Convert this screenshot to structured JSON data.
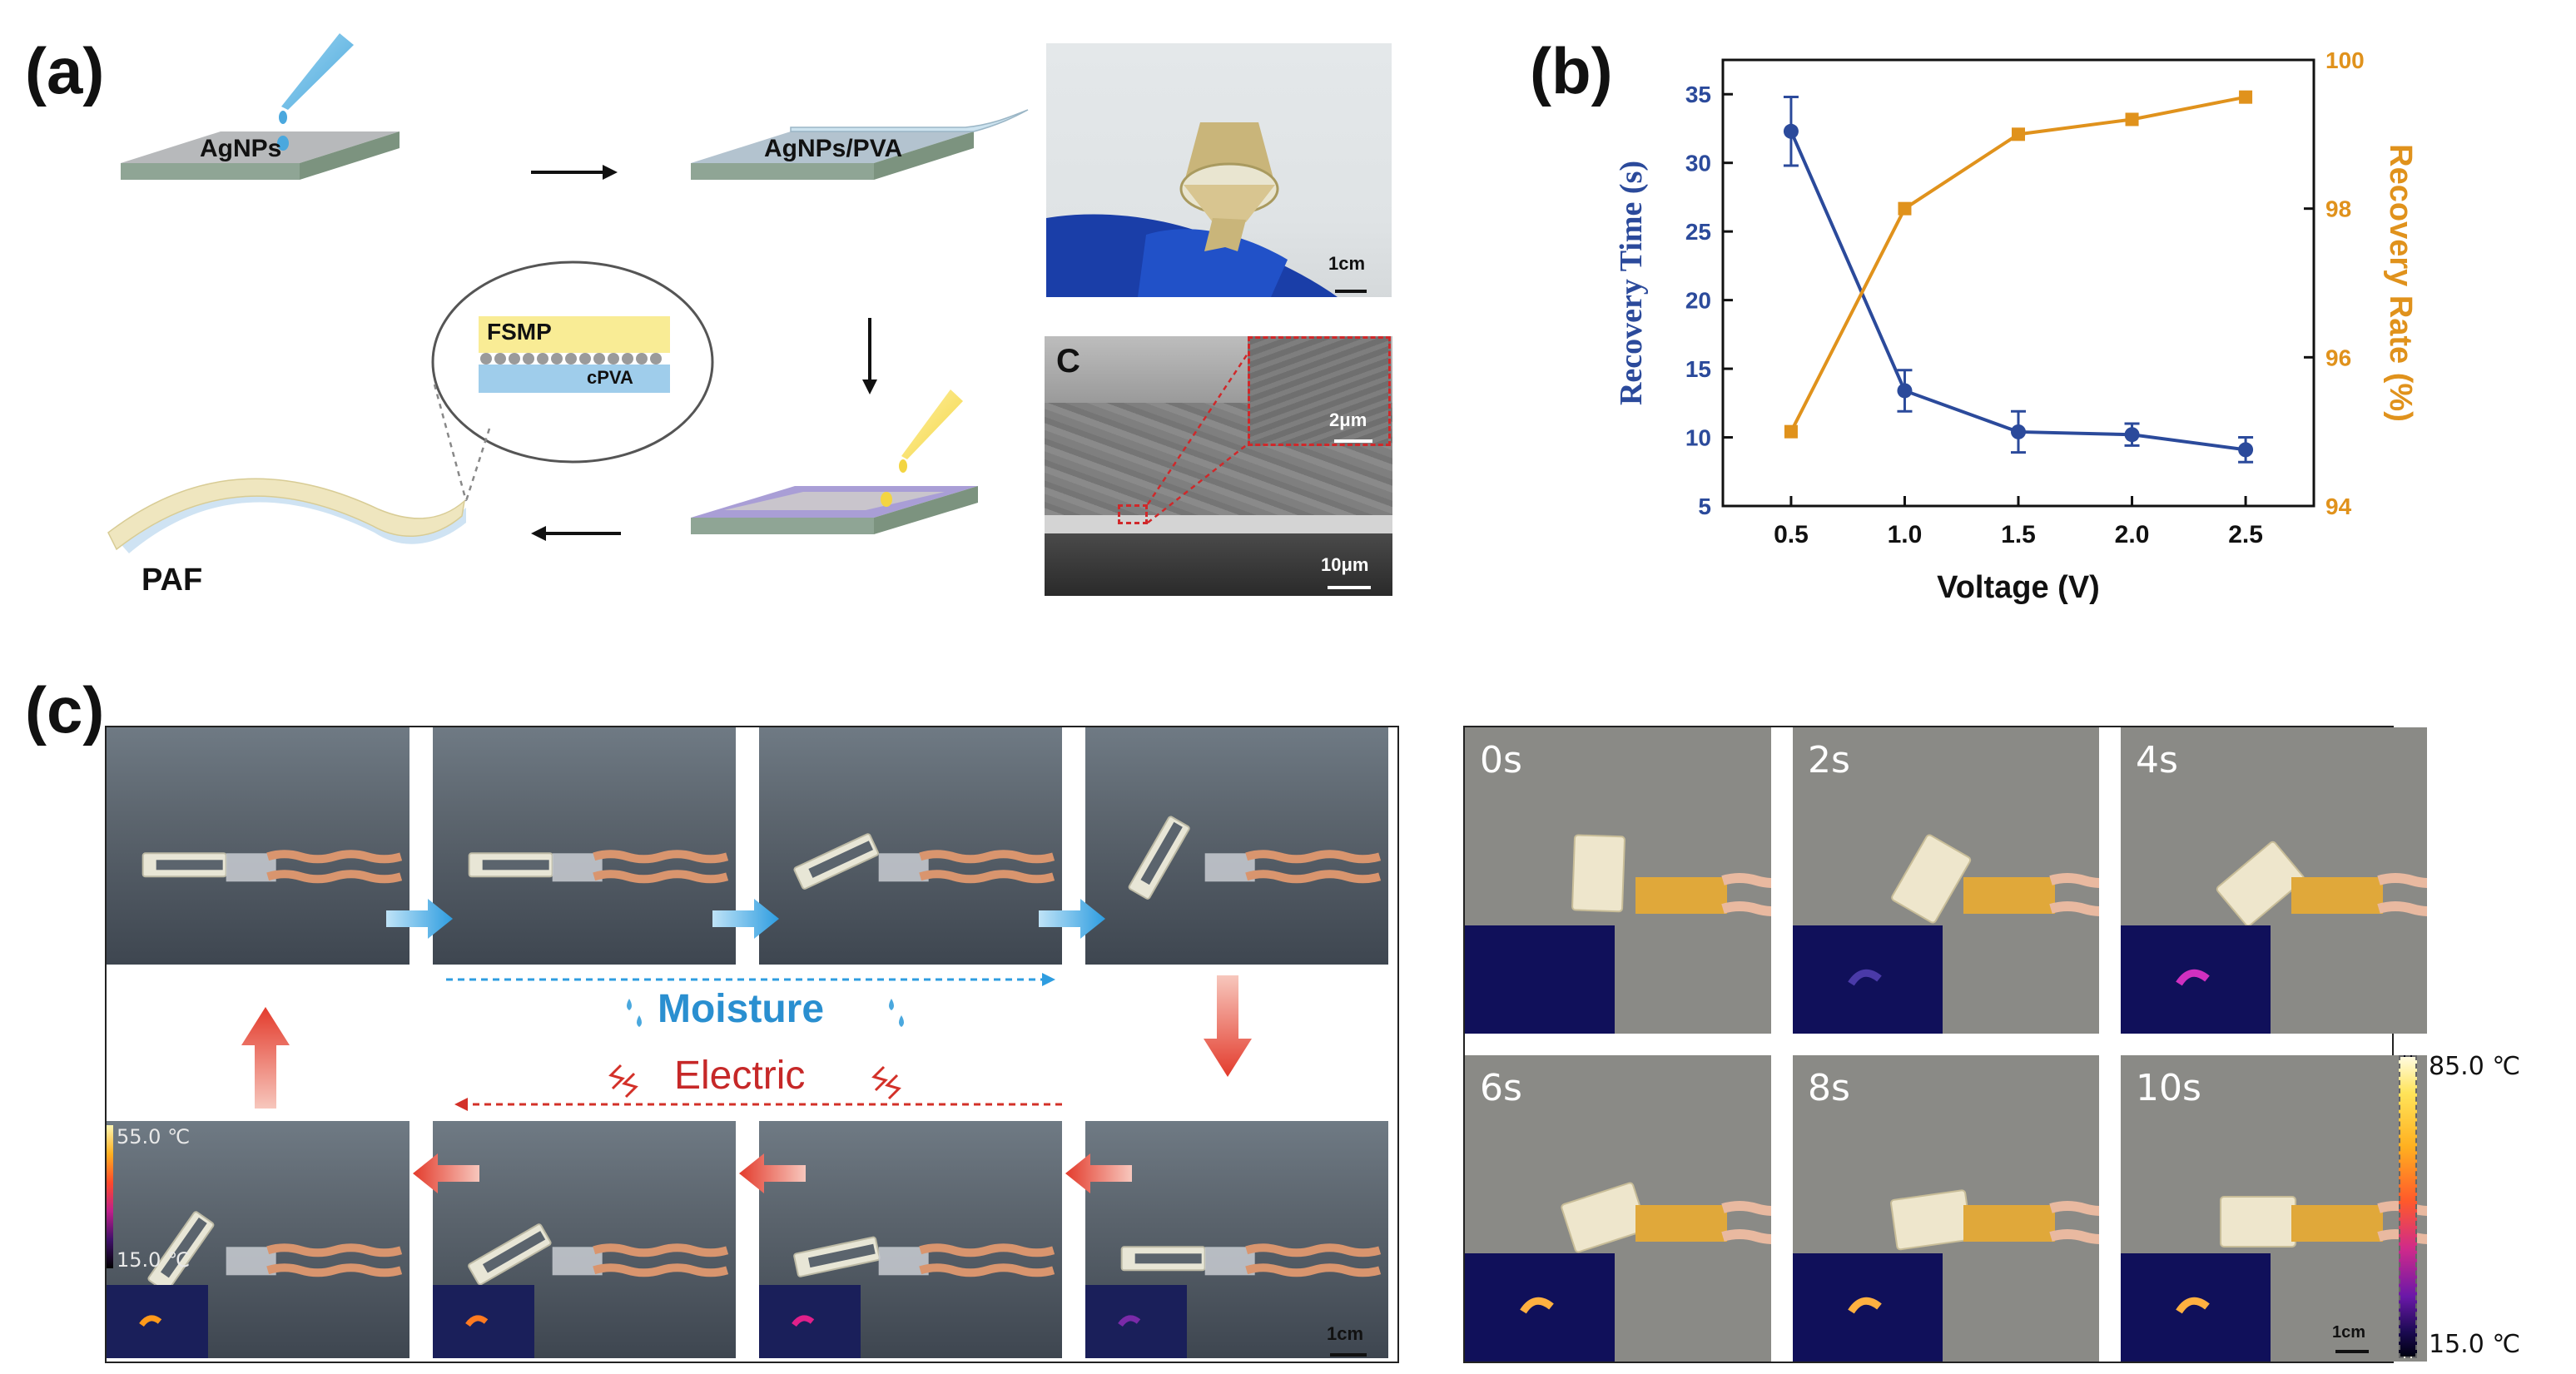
{
  "figure": {
    "panel_a": {
      "letter": "(a)",
      "step1_label": "AgNPs",
      "step2_label": "AgNPs/PVA",
      "layer_top": "FSMP",
      "layer_bottom": "cPVA",
      "film_label": "PAF",
      "photo_scale": "1cm",
      "sem_corner": "C",
      "sem_inset_scale": "2μm",
      "sem_scale": "10μm"
    },
    "panel_b": {
      "letter": "(b)"
    },
    "panel_c": {
      "letter": "(c)",
      "moisture_label": "Moisture",
      "electric_label": "Electric",
      "thermal_max": "55.0 ℃",
      "thermal_min": "15.0 ℃",
      "left_scale": "1cm",
      "time_labels": [
        "0s",
        "2s",
        "4s",
        "6s",
        "8s",
        "10s"
      ],
      "colorbar_max": "85.0 ℃",
      "colorbar_min": "15.0 ℃",
      "right_scale": "1cm"
    }
  },
  "chart_data": {
    "type": "line",
    "x": [
      0.5,
      1.0,
      1.5,
      2.0,
      2.5
    ],
    "xlabel": "Voltage (V)",
    "x_ticks": [
      "0.5",
      "1.0",
      "1.5",
      "2.0",
      "2.5"
    ],
    "xlim": [
      0.2,
      2.8
    ],
    "ylabel": "Recovery Time (s)",
    "y_ticks": [
      "5",
      "10",
      "15",
      "20",
      "25",
      "30",
      "35"
    ],
    "ylim": [
      5,
      37.5
    ],
    "y2label": "Recovery Rate (%)",
    "y2_ticks": [
      "94",
      "96",
      "98",
      "100"
    ],
    "y2lim": [
      94,
      100
    ],
    "grid": false,
    "series": [
      {
        "axis": "left",
        "color": "#2b4a9b",
        "marker": "circle",
        "values": [
          32.3,
          13.4,
          10.4,
          10.2,
          9.1
        ],
        "errors": [
          2.5,
          1.5,
          1.5,
          0.8,
          0.9
        ]
      },
      {
        "axis": "right",
        "color": "#e0921c",
        "marker": "square",
        "values": [
          95.0,
          98.0,
          99.0,
          99.2,
          99.5
        ]
      }
    ]
  }
}
